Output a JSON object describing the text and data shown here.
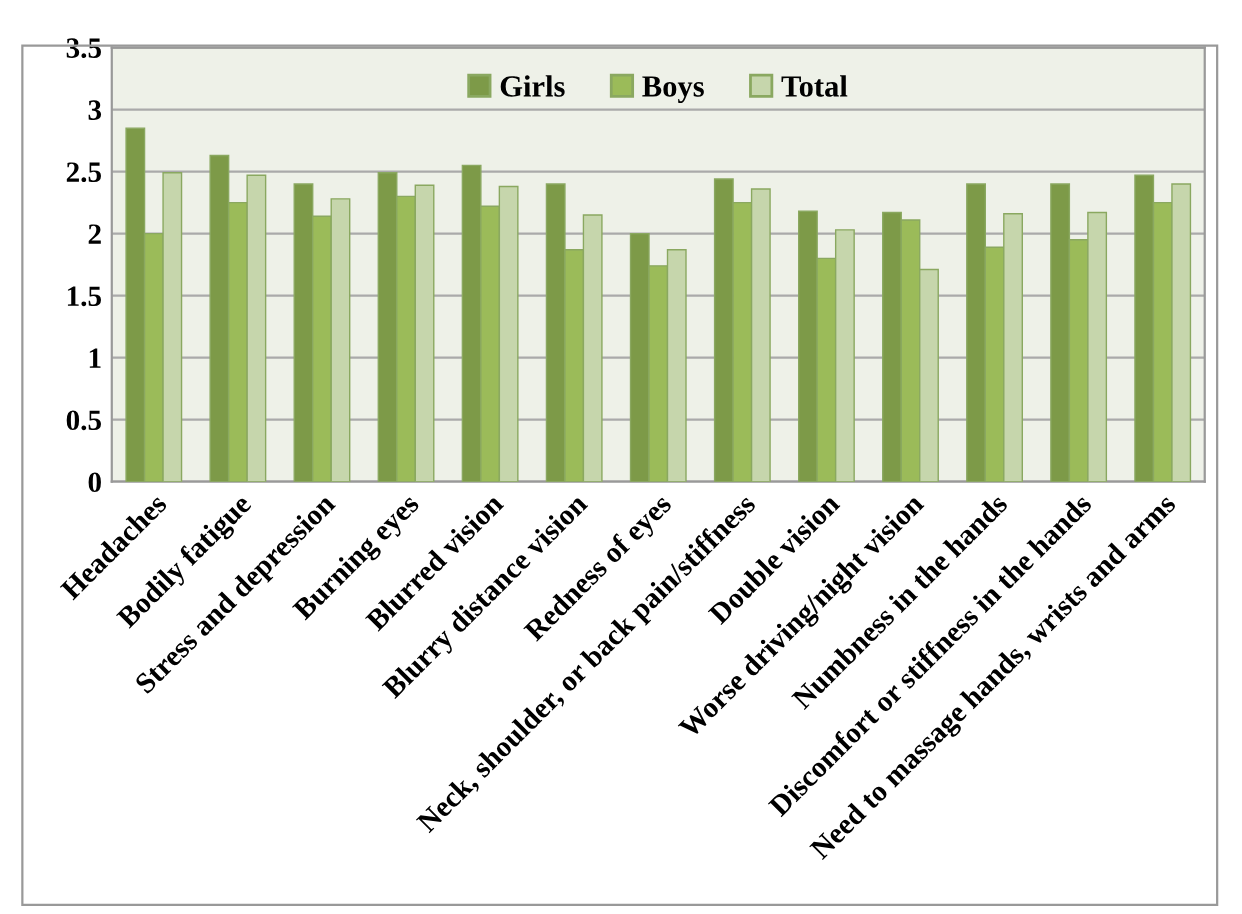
{
  "chart_data": {
    "type": "bar",
    "categories": [
      "Headaches",
      "Bodily fatigue",
      "Stress and depression",
      "Burning eyes",
      "Blurred vision",
      "Blurry distance vision",
      "Redness of eyes",
      "Neck, shoulder, or back pain/stiffness",
      "Double vision",
      "Worse driving/night vision",
      "Numbness in the hands",
      "Discomfort or stiffness in the hands",
      "Need to massage hands, wrists and arms"
    ],
    "series": [
      {
        "name": "Girls",
        "color": "#7d9a48",
        "values": [
          2.85,
          2.63,
          2.4,
          2.49,
          2.55,
          2.4,
          2.0,
          2.44,
          2.18,
          2.17,
          2.4,
          2.4,
          2.47
        ]
      },
      {
        "name": "Boys",
        "color": "#9bbb59",
        "values": [
          2.0,
          2.25,
          2.14,
          2.3,
          2.22,
          1.87,
          1.74,
          2.25,
          1.8,
          2.11,
          1.89,
          1.95,
          2.25
        ]
      },
      {
        "name": "Total",
        "color": "#c6d6ac",
        "values": [
          2.49,
          2.47,
          2.28,
          2.39,
          2.38,
          2.15,
          1.87,
          2.36,
          2.03,
          1.71,
          2.16,
          2.17,
          2.4
        ]
      }
    ],
    "ylim": [
      0,
      3.5
    ],
    "yticks": [
      0,
      0.5,
      1,
      1.5,
      2,
      2.5,
      3,
      3.5
    ],
    "grid": "y",
    "legend": "top"
  }
}
